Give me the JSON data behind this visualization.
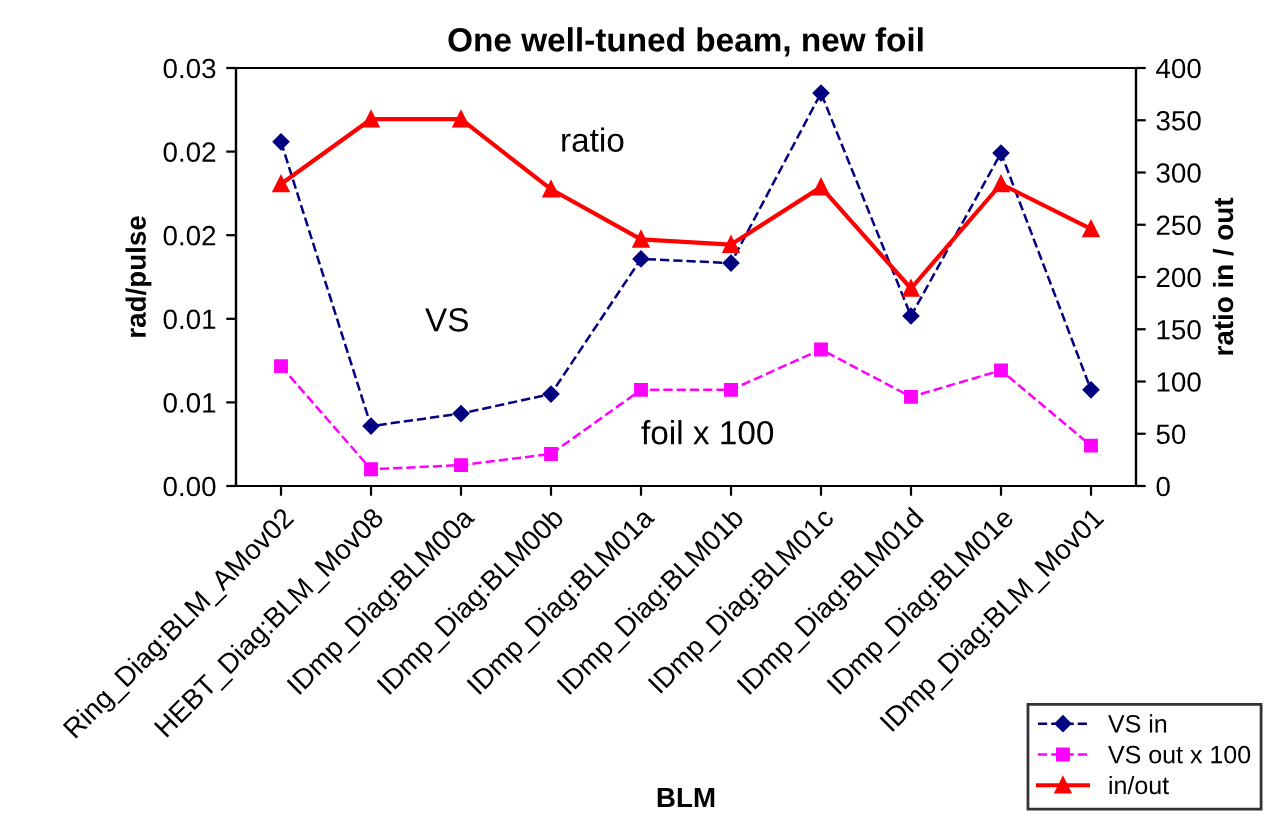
{
  "chart_data": {
    "type": "line",
    "title": "One well-tuned beam, new foil",
    "xlabel": "BLM",
    "ylabel": "rad/pulse",
    "y2label": "ratio in / out",
    "categories": [
      "Ring_Diag:BLM_AMov02",
      "HEBT_Diag:BLM_Mov08",
      "IDmp_Diag:BLM00a",
      "IDmp_Diag:BLM00b",
      "IDmp_Diag:BLM01a",
      "IDmp_Diag:BLM01b",
      "IDmp_Diag:BLM01c",
      "IDmp_Diag:BLM01d",
      "IDmp_Diag:BLM01e",
      "IDmp_Diag:BLM_Mov01"
    ],
    "series": [
      {
        "name": "VS in",
        "color": "#000080",
        "marker": "diamond",
        "line_style": "dashed",
        "values": [
          0.0247,
          0.0043,
          0.0052,
          0.0066,
          0.0163,
          0.016,
          0.0282,
          0.0122,
          0.0239,
          0.0069
        ]
      },
      {
        "name": "VS out x 100",
        "color": "#ff00ff",
        "marker": "square",
        "line_style": "dashed",
        "values": [
          0.0086,
          0.0012,
          0.0015,
          0.0023,
          0.0069,
          0.0069,
          0.0098,
          0.0064,
          0.0083,
          0.0029
        ]
      },
      {
        "name": "in/out",
        "color": "#ff0000",
        "marker": "triangle",
        "line_style": "solid",
        "axis": "y2",
        "values": [
          289,
          351,
          351,
          284,
          236,
          231,
          286,
          189,
          289,
          246
        ]
      }
    ],
    "ylim": [
      0,
      0.03
    ],
    "yticks": [
      {
        "value": 0,
        "label": "0.00"
      },
      {
        "value": 0.006,
        "label": "0.01"
      },
      {
        "value": 0.012,
        "label": "0.01"
      },
      {
        "value": 0.018,
        "label": "0.02"
      },
      {
        "value": 0.024,
        "label": "0.02"
      },
      0.03
    ],
    "y2lim": [
      0,
      400
    ],
    "y2ticks": [
      0,
      50,
      100,
      150,
      200,
      250,
      300,
      350,
      400
    ],
    "annotations": [
      "ratio",
      "VS",
      "foil x 100"
    ],
    "grid": false,
    "legend": "bottom right"
  }
}
